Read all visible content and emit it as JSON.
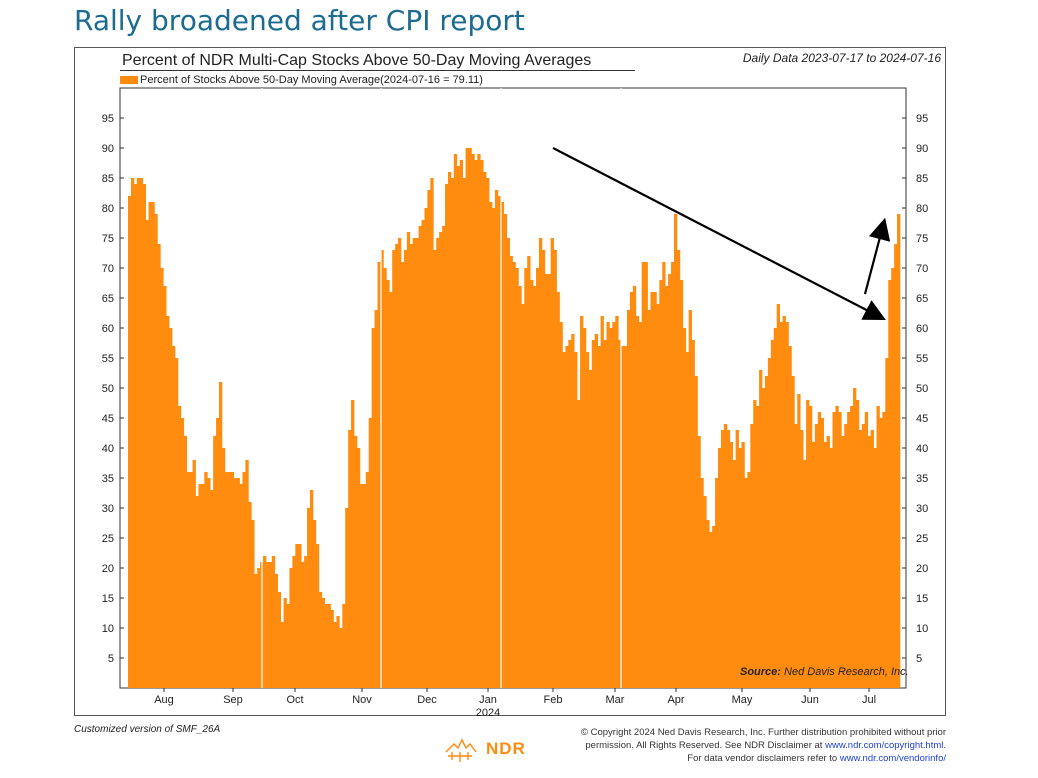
{
  "headline": "Rally broadened after CPI report",
  "chart_data": {
    "type": "bar",
    "title": "Percent of NDR Multi-Cap Stocks Above 50-Day Moving Averages",
    "date_range": "Daily Data 2023-07-17 to 2024-07-16",
    "legend": "Percent of Stocks Above 50-Day Moving Average(2024-07-16 = 79.11)",
    "series_color": "#ff8c0f",
    "ylim": [
      0,
      100
    ],
    "yticks": [
      5,
      10,
      15,
      20,
      25,
      30,
      35,
      40,
      45,
      50,
      55,
      60,
      65,
      70,
      75,
      80,
      85,
      90,
      95
    ],
    "x_month_labels": [
      "Aug",
      "Sep",
      "Oct",
      "Nov",
      "Dec",
      "Jan",
      "Feb",
      "Mar",
      "Apr",
      "May",
      "Jun",
      "Jul"
    ],
    "x_year_label": "2024",
    "source_label": "Source:",
    "source_text": "Ned Davis Research, Inc.",
    "values": [
      82,
      85,
      84,
      85,
      85,
      84,
      78,
      81,
      81,
      79,
      74,
      70,
      67,
      62,
      60,
      57,
      55,
      47,
      45,
      42,
      36,
      36,
      38,
      32,
      34,
      34,
      36,
      35,
      33,
      42,
      45,
      51,
      40,
      36,
      36,
      36,
      35,
      35,
      34,
      36,
      38,
      31,
      28,
      19,
      20,
      21,
      22,
      21,
      21,
      22,
      19,
      16,
      11,
      15,
      14,
      20,
      22,
      24,
      24,
      21,
      22,
      30,
      33,
      28,
      24,
      16,
      15,
      14,
      14,
      13,
      11,
      12,
      10,
      14,
      30,
      43,
      48,
      42,
      40,
      34,
      34,
      36,
      45,
      60,
      63,
      71,
      73,
      70,
      68,
      66,
      73,
      74,
      75,
      71,
      73,
      76,
      74,
      75,
      75,
      77,
      78,
      80,
      83,
      85,
      73,
      75,
      76,
      77,
      84,
      86,
      85,
      89,
      87,
      88,
      85,
      90,
      90,
      89,
      88,
      89,
      88,
      86,
      85,
      81,
      80,
      83,
      82,
      81,
      79,
      75,
      72,
      71,
      70,
      67,
      64,
      70,
      72,
      68,
      67,
      70,
      75,
      73,
      69,
      69,
      75,
      73,
      66,
      61,
      56,
      57,
      58,
      59,
      56,
      48,
      62,
      60,
      56,
      53,
      58,
      59,
      57,
      62,
      58,
      61,
      60,
      61,
      62,
      58,
      57,
      57,
      63,
      66,
      67,
      62,
      61,
      71,
      71,
      63,
      66,
      66,
      64,
      68,
      71,
      67,
      69,
      71,
      79,
      73,
      68,
      60,
      56,
      63,
      58,
      52,
      42,
      35,
      32,
      28,
      26,
      27,
      35,
      40,
      43,
      44,
      43,
      41,
      38,
      43,
      40,
      41,
      35,
      36,
      44,
      48,
      47,
      53,
      50,
      52,
      55,
      58,
      60,
      64,
      61,
      62,
      61,
      57,
      52,
      44,
      49,
      43,
      38,
      48,
      47,
      41,
      44,
      46,
      45,
      41,
      42,
      40,
      46,
      47,
      46,
      42,
      44,
      46,
      47,
      50,
      48,
      43,
      44,
      46,
      42,
      43,
      40,
      47,
      45,
      46,
      55,
      68,
      70,
      74,
      79
    ],
    "month_separators": [
      "Sep-Oct",
      "Nov-Dec",
      "Jan",
      "Mar-Apr"
    ]
  },
  "footer": {
    "custom_version": "Customized version of SMF_26A",
    "logo_text": "NDR",
    "copyright_line1": "© Copyright 2024 Ned Davis Research, Inc. Further distribution prohibited without prior",
    "copyright_line2_prefix": "permission. All Rights Reserved. See NDR Disclaimer at",
    "copyright_link1": "www.ndr.com/copyright.html.",
    "copyright_line3_prefix": "For data vendor disclaimers refer to",
    "copyright_link2": "www.ndr.com/vendorinfo/"
  }
}
